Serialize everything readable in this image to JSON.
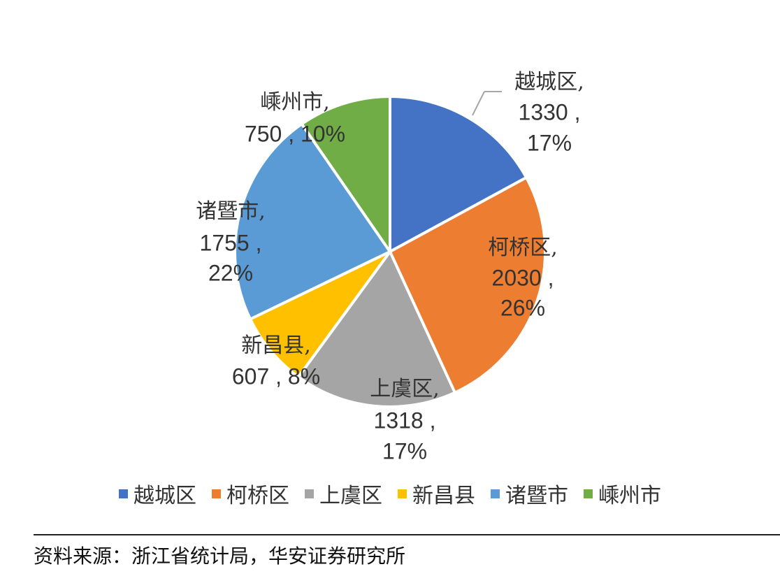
{
  "chart_data": {
    "type": "pie",
    "title": "",
    "categories": [
      "越城区",
      "柯桥区",
      "上虞区",
      "新昌县",
      "诸暨市",
      "嵊州市"
    ],
    "values": [
      1330,
      2030,
      1318,
      607,
      1755,
      750
    ],
    "percents": [
      "17%",
      "26%",
      "17%",
      "8%",
      "22%",
      "10%"
    ],
    "colors": [
      "#4472C4",
      "#ED7D31",
      "#A5A5A5",
      "#FFC000",
      "#5B9BD5",
      "#70AD47"
    ],
    "legend_position": "bottom"
  },
  "source": "资料来源：浙江省统计局，华安证券研究所"
}
